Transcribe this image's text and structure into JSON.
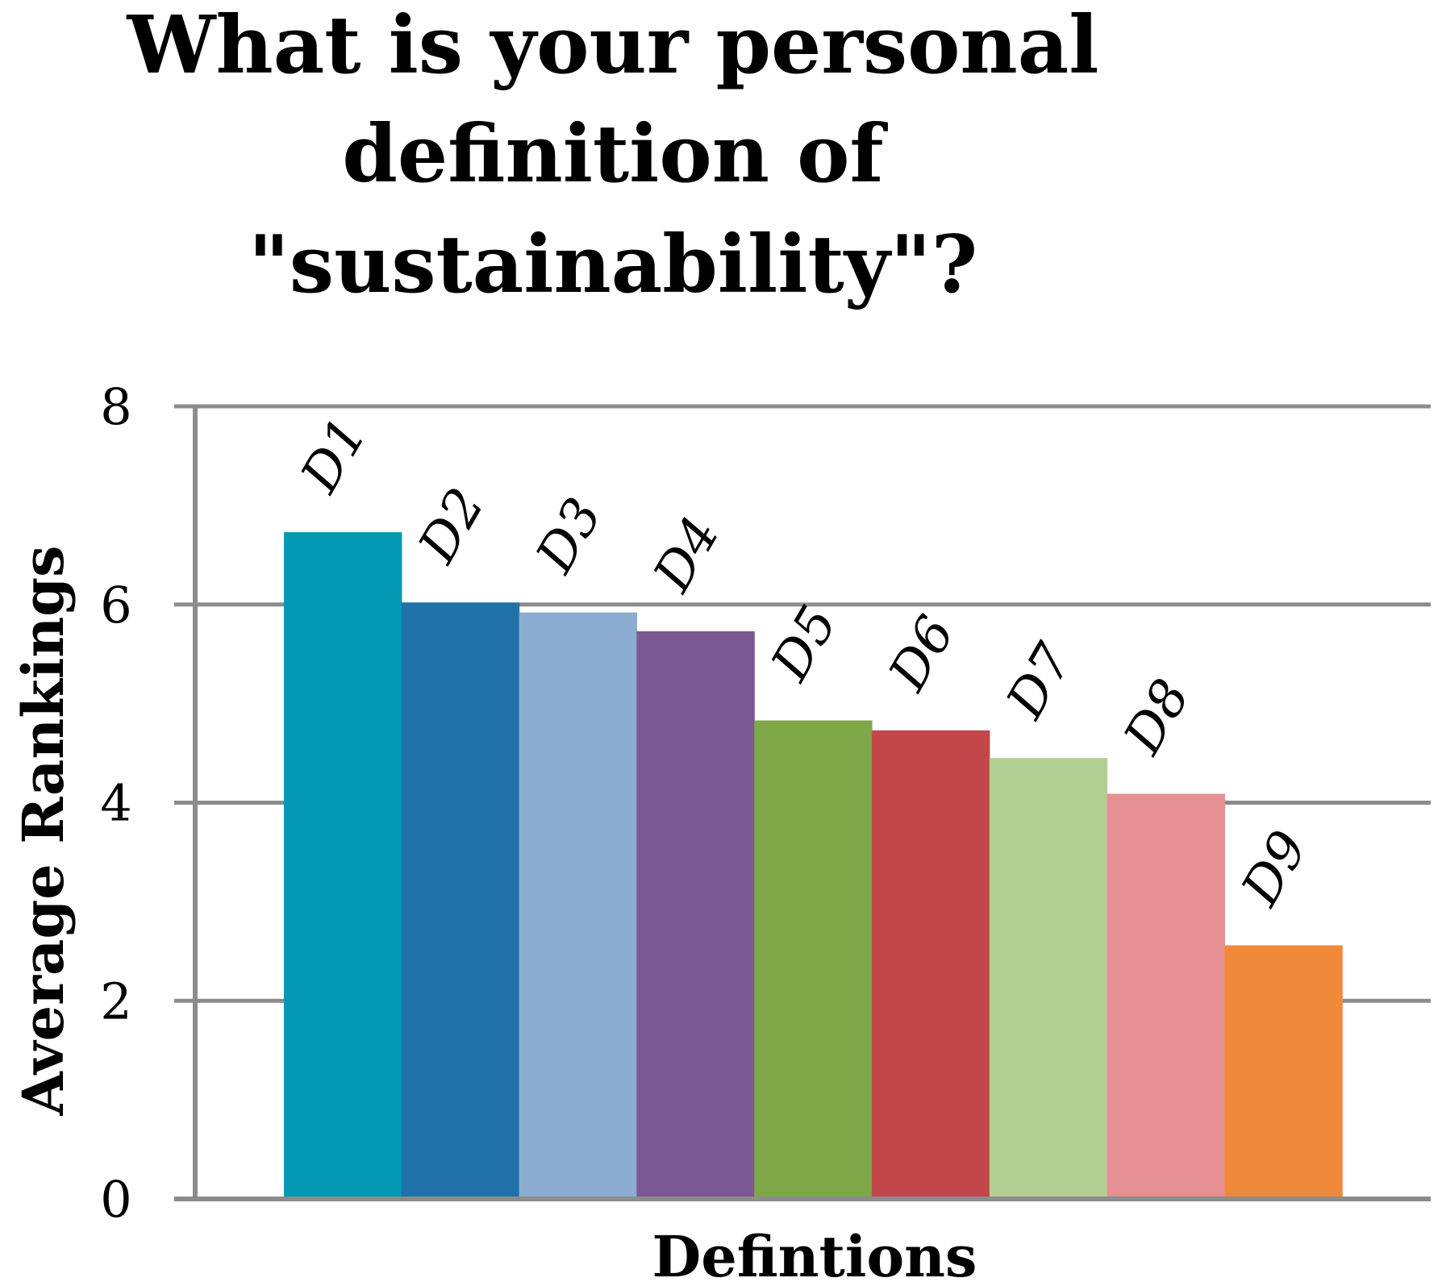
{
  "chart_data": {
    "type": "bar",
    "title": "What is your personal definition of \"sustainability\"?",
    "title_lines": [
      "What is your personal",
      "definition of",
      "\"sustainability\"?"
    ],
    "xlabel": "Defintions",
    "ylabel": "Average Rankings",
    "ylim": [
      0,
      8
    ],
    "yticks": [
      "0",
      "2",
      "4",
      "6",
      "8"
    ],
    "grid": true,
    "legend": false,
    "categories": [
      "D1",
      "D2",
      "D3",
      "D4",
      "D5",
      "D6",
      "D7",
      "D8",
      "D9"
    ],
    "values": [
      6.73,
      6.02,
      5.92,
      5.73,
      4.83,
      4.73,
      4.45,
      4.09,
      2.56
    ],
    "colors": [
      "#0499B2",
      "#1E72A8",
      "#8BABD1",
      "#7B5892",
      "#7EA748",
      "#C3464A",
      "#B3CE93",
      "#E59092",
      "#F0883A"
    ]
  }
}
